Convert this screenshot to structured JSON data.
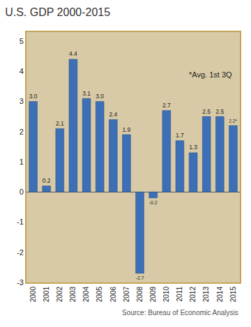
{
  "chart_data": {
    "type": "bar",
    "title": "U.S. GDP 2000-2015",
    "categories": [
      "2000",
      "2001",
      "2002",
      "2003",
      "2004",
      "2005",
      "2006",
      "2007",
      "2008",
      "2009",
      "2010",
      "2011",
      "2012",
      "2013",
      "2014",
      "2015"
    ],
    "values": [
      3.0,
      0.2,
      2.1,
      4.4,
      3.1,
      3.0,
      2.4,
      1.9,
      -2.7,
      -0.2,
      2.7,
      1.7,
      1.3,
      2.5,
      2.5,
      2.2
    ],
    "value_labels": [
      "3.0",
      "0.2",
      "2.1",
      "4.4",
      "3.1",
      "3.0",
      "2.4",
      "1.9",
      "-2.7",
      "-0.2",
      "2.7",
      "1.7",
      "1.3",
      "2.5",
      "2.5",
      "2.2*"
    ],
    "color": "#3c6fb5",
    "ylim": [
      -3,
      5.3
    ],
    "yticks": [
      -3,
      -2,
      -1,
      0,
      1,
      2,
      3,
      4,
      5
    ],
    "grid": false,
    "data_labels": true,
    "annotations": [
      "*Avg. 1st 3Q",
      "Source: Bureau of Economic Analysis"
    ]
  }
}
